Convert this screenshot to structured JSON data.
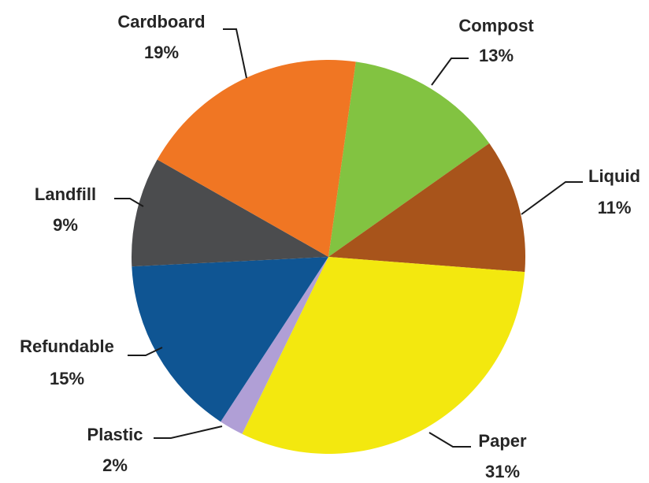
{
  "chart_data": {
    "type": "pie",
    "start_angle_deg": 8,
    "direction": "clockwise",
    "slices": [
      {
        "label": "Compost",
        "value": 13,
        "value_label": "13%",
        "color": "#82c341"
      },
      {
        "label": "Liquid",
        "value": 11,
        "value_label": "11%",
        "color": "#a8541b"
      },
      {
        "label": "Paper",
        "value": 31,
        "value_label": "31%",
        "color": "#f3e80f"
      },
      {
        "label": "Plastic",
        "value": 2,
        "value_label": "2%",
        "color": "#b09fd6"
      },
      {
        "label": "Refundable",
        "value": 15,
        "value_label": "15%",
        "color": "#0f5593"
      },
      {
        "label": "Landfill",
        "value": 9,
        "value_label": "9%",
        "color": "#4b4c4e"
      },
      {
        "label": "Cardboard",
        "value": 19,
        "value_label": "19%",
        "color": "#f07623"
      }
    ]
  }
}
